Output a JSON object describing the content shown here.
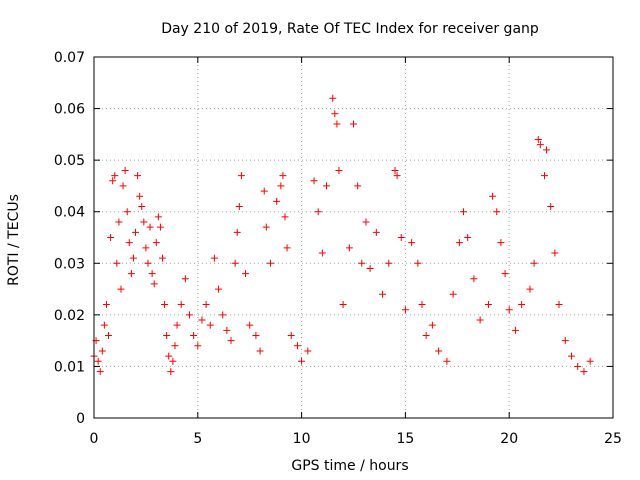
{
  "chart_data": {
    "type": "scatter",
    "title": "Day 210 of 2019, Rate Of TEC Index for receiver ganp",
    "xlabel": "GPS time / hours",
    "ylabel": "ROTI / TECUs",
    "xlim": [
      0,
      25
    ],
    "ylim": [
      0,
      0.07
    ],
    "xticks": [
      0,
      5,
      10,
      15,
      20,
      25
    ],
    "yticks": [
      0,
      0.01,
      0.02,
      0.03,
      0.04,
      0.05,
      0.06,
      0.07
    ],
    "xtick_labels": [
      "0",
      "5",
      "10",
      "15",
      "20",
      "25"
    ],
    "ytick_labels": [
      "0",
      "0.01",
      "0.02",
      "0.03",
      "0.04",
      "0.05",
      "0.06",
      "0.07"
    ],
    "grid": true,
    "marker": "+",
    "color": "#ff0000",
    "series": [
      {
        "name": "ROTI",
        "points": [
          [
            0.0,
            0.012
          ],
          [
            0.1,
            0.015
          ],
          [
            0.2,
            0.011
          ],
          [
            0.3,
            0.009
          ],
          [
            0.4,
            0.013
          ],
          [
            0.5,
            0.018
          ],
          [
            0.6,
            0.022
          ],
          [
            0.7,
            0.016
          ],
          [
            0.8,
            0.035
          ],
          [
            0.9,
            0.046
          ],
          [
            1.0,
            0.047
          ],
          [
            1.1,
            0.03
          ],
          [
            1.2,
            0.038
          ],
          [
            1.3,
            0.025
          ],
          [
            1.4,
            0.045
          ],
          [
            1.5,
            0.048
          ],
          [
            1.6,
            0.04
          ],
          [
            1.7,
            0.034
          ],
          [
            1.8,
            0.028
          ],
          [
            1.9,
            0.031
          ],
          [
            2.0,
            0.036
          ],
          [
            2.1,
            0.047
          ],
          [
            2.2,
            0.043
          ],
          [
            2.3,
            0.041
          ],
          [
            2.4,
            0.038
          ],
          [
            2.5,
            0.033
          ],
          [
            2.6,
            0.03
          ],
          [
            2.7,
            0.037
          ],
          [
            2.8,
            0.028
          ],
          [
            2.9,
            0.026
          ],
          [
            3.0,
            0.034
          ],
          [
            3.1,
            0.039
          ],
          [
            3.2,
            0.037
          ],
          [
            3.3,
            0.031
          ],
          [
            3.4,
            0.022
          ],
          [
            3.5,
            0.016
          ],
          [
            3.6,
            0.012
          ],
          [
            3.7,
            0.009
          ],
          [
            3.8,
            0.011
          ],
          [
            3.9,
            0.014
          ],
          [
            4.0,
            0.018
          ],
          [
            4.2,
            0.022
          ],
          [
            4.4,
            0.027
          ],
          [
            4.6,
            0.02
          ],
          [
            4.8,
            0.016
          ],
          [
            5.0,
            0.014
          ],
          [
            5.2,
            0.019
          ],
          [
            5.4,
            0.022
          ],
          [
            5.6,
            0.018
          ],
          [
            5.8,
            0.031
          ],
          [
            6.0,
            0.025
          ],
          [
            6.2,
            0.02
          ],
          [
            6.4,
            0.017
          ],
          [
            6.6,
            0.015
          ],
          [
            6.8,
            0.03
          ],
          [
            6.9,
            0.036
          ],
          [
            7.0,
            0.041
          ],
          [
            7.1,
            0.047
          ],
          [
            7.3,
            0.028
          ],
          [
            7.5,
            0.018
          ],
          [
            7.8,
            0.016
          ],
          [
            8.0,
            0.013
          ],
          [
            8.2,
            0.044
          ],
          [
            8.3,
            0.037
          ],
          [
            8.5,
            0.03
          ],
          [
            8.8,
            0.042
          ],
          [
            9.0,
            0.045
          ],
          [
            9.1,
            0.047
          ],
          [
            9.2,
            0.039
          ],
          [
            9.3,
            0.033
          ],
          [
            9.5,
            0.016
          ],
          [
            9.8,
            0.014
          ],
          [
            10.0,
            0.011
          ],
          [
            10.3,
            0.013
          ],
          [
            10.6,
            0.046
          ],
          [
            10.8,
            0.04
          ],
          [
            11.0,
            0.032
          ],
          [
            11.2,
            0.045
          ],
          [
            11.5,
            0.062
          ],
          [
            11.6,
            0.059
          ],
          [
            11.7,
            0.057
          ],
          [
            11.8,
            0.048
          ],
          [
            12.0,
            0.022
          ],
          [
            12.3,
            0.033
          ],
          [
            12.5,
            0.057
          ],
          [
            12.7,
            0.045
          ],
          [
            12.9,
            0.03
          ],
          [
            13.1,
            0.038
          ],
          [
            13.3,
            0.029
          ],
          [
            13.6,
            0.036
          ],
          [
            13.9,
            0.024
          ],
          [
            14.2,
            0.03
          ],
          [
            14.5,
            0.048
          ],
          [
            14.6,
            0.047
          ],
          [
            14.8,
            0.035
          ],
          [
            15.0,
            0.021
          ],
          [
            15.3,
            0.034
          ],
          [
            15.6,
            0.03
          ],
          [
            15.8,
            0.022
          ],
          [
            16.0,
            0.016
          ],
          [
            16.3,
            0.018
          ],
          [
            16.6,
            0.013
          ],
          [
            17.0,
            0.011
          ],
          [
            17.3,
            0.024
          ],
          [
            17.6,
            0.034
          ],
          [
            17.8,
            0.04
          ],
          [
            18.0,
            0.035
          ],
          [
            18.3,
            0.027
          ],
          [
            18.6,
            0.019
          ],
          [
            19.0,
            0.022
          ],
          [
            19.2,
            0.043
          ],
          [
            19.4,
            0.04
          ],
          [
            19.6,
            0.034
          ],
          [
            19.8,
            0.028
          ],
          [
            20.0,
            0.021
          ],
          [
            20.3,
            0.017
          ],
          [
            20.6,
            0.022
          ],
          [
            21.0,
            0.025
          ],
          [
            21.2,
            0.03
          ],
          [
            21.4,
            0.054
          ],
          [
            21.5,
            0.053
          ],
          [
            21.7,
            0.047
          ],
          [
            21.8,
            0.052
          ],
          [
            22.0,
            0.041
          ],
          [
            22.2,
            0.032
          ],
          [
            22.4,
            0.022
          ],
          [
            22.7,
            0.015
          ],
          [
            23.0,
            0.012
          ],
          [
            23.3,
            0.01
          ],
          [
            23.6,
            0.009
          ],
          [
            23.9,
            0.011
          ]
        ]
      }
    ]
  }
}
